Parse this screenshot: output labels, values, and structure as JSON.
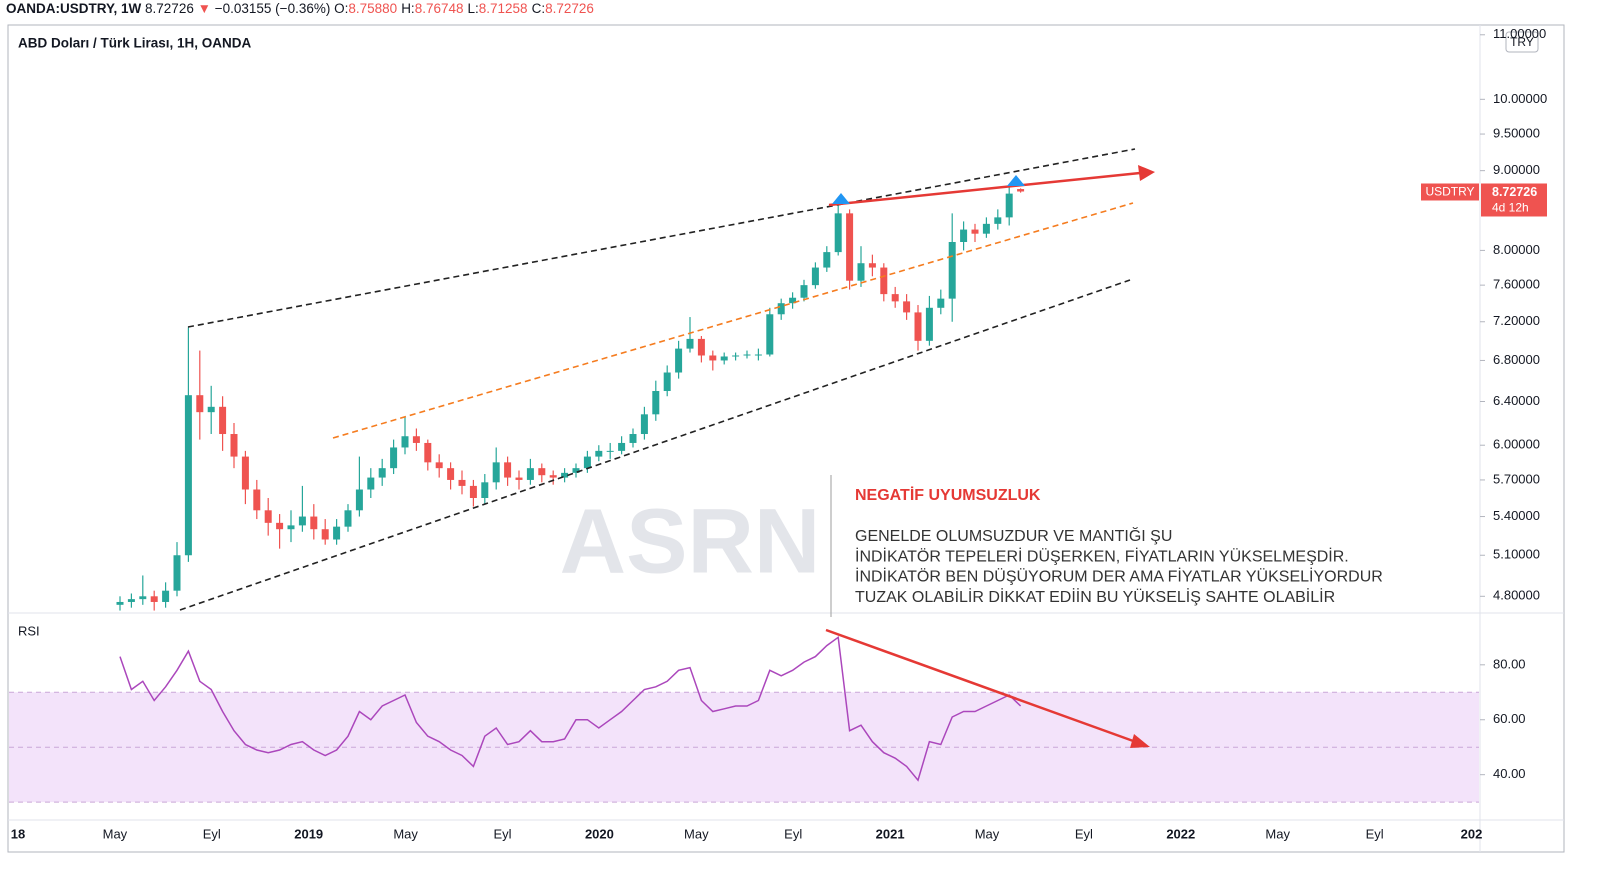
{
  "header": {
    "symbol": "OANDA:USDTRY, 1W",
    "last": "8.72726",
    "arrow": "▼",
    "change": "−0.03155 (−0.36%)",
    "ohlc": [
      {
        "label": "O:",
        "value": "8.75880"
      },
      {
        "label": "H:",
        "value": "8.76748"
      },
      {
        "label": "L:",
        "value": "8.71258"
      },
      {
        "label": "C:",
        "value": "8.72726"
      }
    ]
  },
  "chart_data": [
    {
      "type": "candlestick",
      "title": "ABD Doları / Türk Lirası, 1H, OANDA",
      "currency": "TRY",
      "log_scale": true,
      "up_color": "#26a69a",
      "down_color": "#ef5350",
      "x_axis_labels": [
        "18",
        "May",
        "Eyl",
        "2019",
        "May",
        "Eyl",
        "2020",
        "May",
        "Eyl",
        "2021",
        "May",
        "Eyl",
        "2022",
        "May",
        "Eyl",
        "202"
      ],
      "ylim": [
        4.69,
        11.16
      ],
      "yticks": [
        {
          "value": 4.8,
          "label": "4.80000"
        },
        {
          "value": 5.1,
          "label": "5.10000"
        },
        {
          "value": 5.4,
          "label": "5.40000"
        },
        {
          "value": 5.7,
          "label": "5.70000"
        },
        {
          "value": 6,
          "label": "6.00000"
        },
        {
          "value": 6.4,
          "label": "6.40000"
        },
        {
          "value": 6.8,
          "label": "6.80000"
        },
        {
          "value": 7.2,
          "label": "7.20000"
        },
        {
          "value": 7.6,
          "label": "7.60000"
        },
        {
          "value": 8,
          "label": "8.00000"
        },
        {
          "value": 9,
          "label": "9.00000"
        },
        {
          "value": 9.5,
          "label": "9.50000"
        },
        {
          "value": 10,
          "label": "10.00000"
        },
        {
          "value": 11,
          "label": "11.00000"
        }
      ],
      "open": [
        4.74,
        4.76,
        4.78,
        4.8,
        4.76,
        4.84,
        5.1,
        6.46,
        6.3,
        6.35,
        6.1,
        5.9,
        5.62,
        5.45,
        5.35,
        5.3,
        5.33,
        5.4,
        5.3,
        5.22,
        5.32,
        5.45,
        5.62,
        5.72,
        5.8,
        5.98,
        6.08,
        6.02,
        5.85,
        5.8,
        5.7,
        5.65,
        5.55,
        5.68,
        5.85,
        5.72,
        5.7,
        5.8,
        5.74,
        5.72,
        5.76,
        5.8,
        5.9,
        5.95,
        5.95,
        6.02,
        6.1,
        6.28,
        6.5,
        6.68,
        6.92,
        7.02,
        6.85,
        6.8,
        6.84,
        6.85,
        6.86,
        6.86,
        7.28,
        7.4,
        7.46,
        7.6,
        7.8,
        7.98,
        8.45,
        7.65,
        7.85,
        7.8,
        7.5,
        7.42,
        7.3,
        7.0,
        7.35,
        7.45,
        8.1,
        8.25,
        8.2,
        8.32,
        8.4,
        8.7588
      ],
      "high": [
        4.8,
        4.82,
        4.95,
        4.84,
        4.9,
        5.2,
        7.14,
        6.9,
        6.55,
        6.45,
        6.2,
        5.95,
        5.7,
        5.55,
        5.42,
        5.45,
        5.65,
        5.5,
        5.38,
        5.38,
        5.5,
        5.9,
        5.8,
        5.88,
        6.05,
        6.25,
        6.15,
        6.05,
        5.92,
        5.85,
        5.78,
        5.7,
        5.75,
        5.98,
        5.9,
        5.78,
        5.88,
        5.84,
        5.78,
        5.8,
        5.84,
        5.95,
        6.0,
        6.02,
        6.08,
        6.15,
        6.35,
        6.6,
        6.75,
        7.0,
        7.25,
        7.05,
        6.9,
        6.88,
        6.88,
        6.9,
        6.92,
        7.35,
        7.45,
        7.52,
        7.66,
        7.86,
        8.05,
        8.64,
        8.5,
        8.05,
        7.95,
        7.85,
        7.58,
        7.5,
        7.38,
        7.48,
        7.55,
        8.45,
        8.35,
        8.32,
        8.4,
        8.5,
        8.8,
        8.76748
      ],
      "low": [
        4.7,
        4.72,
        4.74,
        4.7,
        4.72,
        4.8,
        5.05,
        6.05,
        6.1,
        5.95,
        5.8,
        5.5,
        5.38,
        5.25,
        5.15,
        5.2,
        5.28,
        5.22,
        5.18,
        5.18,
        5.28,
        5.4,
        5.55,
        5.65,
        5.75,
        5.92,
        5.95,
        5.78,
        5.72,
        5.62,
        5.58,
        5.48,
        5.5,
        5.62,
        5.65,
        5.62,
        5.66,
        5.68,
        5.66,
        5.68,
        5.72,
        5.76,
        5.86,
        5.88,
        5.92,
        5.98,
        6.05,
        6.22,
        6.45,
        6.62,
        6.88,
        6.78,
        6.7,
        6.76,
        6.8,
        6.82,
        6.8,
        6.84,
        7.22,
        7.34,
        7.42,
        7.56,
        7.75,
        7.94,
        7.55,
        7.58,
        7.7,
        7.42,
        7.35,
        7.22,
        6.9,
        6.95,
        7.28,
        7.2,
        8.0,
        8.1,
        8.15,
        8.25,
        8.3,
        8.71258
      ],
      "close": [
        4.76,
        4.78,
        4.8,
        4.76,
        4.84,
        5.1,
        6.46,
        6.3,
        6.35,
        6.1,
        5.9,
        5.62,
        5.45,
        5.35,
        5.3,
        5.33,
        5.4,
        5.3,
        5.22,
        5.32,
        5.45,
        5.62,
        5.72,
        5.8,
        5.98,
        6.08,
        6.02,
        5.85,
        5.8,
        5.7,
        5.65,
        5.55,
        5.68,
        5.85,
        5.72,
        5.7,
        5.8,
        5.74,
        5.72,
        5.76,
        5.8,
        5.9,
        5.95,
        5.95,
        6.02,
        6.1,
        6.28,
        6.5,
        6.68,
        6.92,
        7.02,
        6.85,
        6.8,
        6.84,
        6.85,
        6.86,
        6.86,
        7.28,
        7.4,
        7.46,
        7.6,
        7.8,
        7.98,
        8.45,
        7.65,
        7.85,
        7.8,
        7.5,
        7.42,
        7.3,
        7.0,
        7.35,
        7.45,
        8.1,
        8.25,
        8.2,
        8.32,
        8.4,
        8.7,
        8.72726
      ],
      "price_tag": {
        "symbol": "USDTRY",
        "price": "8.72726",
        "countdown": "4d 12h"
      },
      "watermark": "ASRN",
      "annotation": {
        "title": "NEGATİF UYUMSUZLUK",
        "lines": [
          "GENELDE OLUMSUZDUR VE MANTIĞI ŞU",
          "İNDİKATÖR TEPELERİ DÜŞERKEN, FİYATLARIN YÜKSELMEŞDİR.",
          "İNDİKATÖR BEN DÜŞÜYORUM DER  AMA FİYATLAR YÜKSELİYORDUR",
          "TUZAK OLABİLİR DİKKAT EDİİN BU YÜKSELİŞ SAHTE OLABİLİR"
        ]
      }
    },
    {
      "type": "line",
      "title": "RSI",
      "color": "#ab47bc",
      "band": [
        30,
        70
      ],
      "midline": 50,
      "band_color": "#f3e3fa",
      "ylim": [
        23.5,
        98.5
      ],
      "yticks": [
        {
          "value": 40,
          "label": "40.00"
        },
        {
          "value": 60,
          "label": "60.00"
        },
        {
          "value": 80,
          "label": "80.00"
        }
      ],
      "values": [
        83,
        71,
        74,
        67,
        72,
        78,
        85,
        74,
        71,
        63,
        56,
        51,
        49,
        48,
        49,
        51,
        52,
        49,
        47,
        49,
        54,
        63,
        60,
        65,
        67,
        69,
        59,
        54,
        52,
        49,
        47,
        43,
        54,
        57,
        51,
        52,
        56,
        52,
        52,
        53,
        60,
        60,
        57,
        60,
        63,
        67,
        71,
        72,
        74,
        78,
        79,
        67,
        63,
        64,
        65,
        65,
        67,
        78,
        76,
        78,
        81,
        83,
        87,
        90,
        56,
        58,
        52,
        48,
        46,
        43,
        38,
        52,
        51,
        61,
        63,
        63,
        65,
        67,
        69,
        65
      ]
    }
  ]
}
